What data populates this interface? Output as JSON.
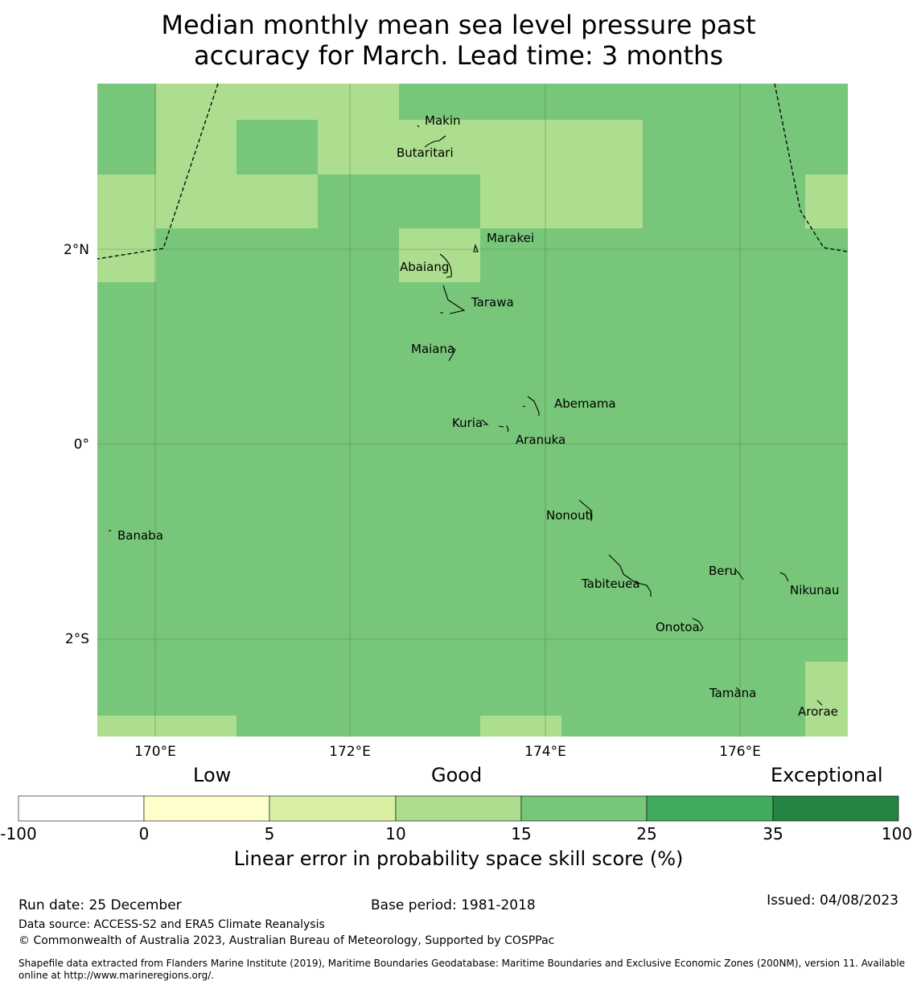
{
  "title": {
    "line1": "Median monthly mean sea level pressure past",
    "line2": "accuracy for March. Lead time: 3 months"
  },
  "map": {
    "lat_labels": [
      "2°N",
      "0°",
      "2°S"
    ],
    "lon_labels": [
      "170°E",
      "172°E",
      "174°E",
      "176°E"
    ],
    "places": [
      {
        "name": "Makin"
      },
      {
        "name": "Butaritari"
      },
      {
        "name": "Marakei"
      },
      {
        "name": "Abaiang"
      },
      {
        "name": "Tarawa"
      },
      {
        "name": "Maiana"
      },
      {
        "name": "Abemama"
      },
      {
        "name": "Kuria"
      },
      {
        "name": "Aranuka"
      },
      {
        "name": "Nonouti"
      },
      {
        "name": "Banaba"
      },
      {
        "name": "Beru"
      },
      {
        "name": "Tabiteuea"
      },
      {
        "name": "Nikunau"
      },
      {
        "name": "Onotoa"
      },
      {
        "name": "Tamana"
      },
      {
        "name": "Arorae"
      }
    ]
  },
  "colorbar": {
    "categories": [
      "Low",
      "Good",
      "Exceptional"
    ],
    "ticks": [
      "-100",
      "0",
      "5",
      "10",
      "15",
      "25",
      "35",
      "100"
    ],
    "colors": [
      "#ffffff",
      "#ffffcc",
      "#d9f0a3",
      "#addd8e",
      "#78c679",
      "#41ab5d",
      "#238443"
    ],
    "axis_title": "Linear error in probability space skill score (%)"
  },
  "footer": {
    "run_date": "Run date: 25 December",
    "base_period": "Base period: 1981-2018",
    "issued": "Issued: 04/08/2023",
    "data_source": "Data source: ACCESS-S2 and ERA5 Climate Reanalysis",
    "copyright": "© Commonwealth of Australia 2023, Australian Bureau of Meteorology, Supported by COSPPac",
    "shapefile": "Shapefile data extracted from Flanders Marine Institute (2019), Maritime Boundaries Geodatabase: Maritime Boundaries and Exclusive Economic Zones (200NM), version 11. Available online at http://www.marineregions.org/."
  }
}
